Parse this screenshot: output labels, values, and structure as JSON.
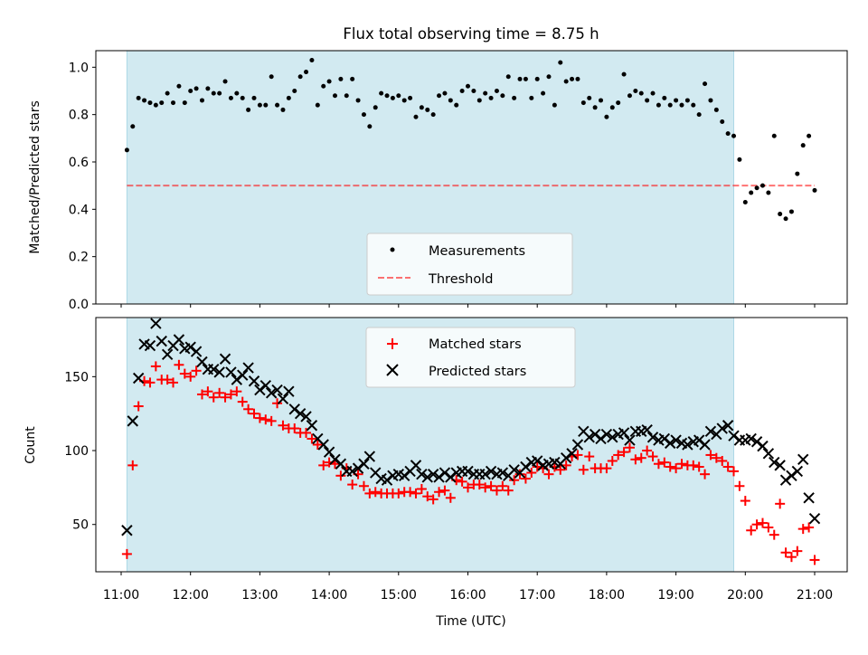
{
  "title": "Flux total observing time = 8.75 h",
  "colors": {
    "observing_band": "#add8e6",
    "measurement": "#000000",
    "threshold": "#ff0000",
    "matched": "#ff0000",
    "predicted": "#000000"
  },
  "chart_data": [
    {
      "type": "scatter",
      "panel": "top",
      "title": "Flux total observing time = 8.75 h",
      "xlabel": "",
      "ylabel": "Matched/Predicted stars",
      "xlim": [
        "10:55",
        "21:30"
      ],
      "ylim": [
        0.0,
        1.07
      ],
      "yticks": [
        0.0,
        0.2,
        0.4,
        0.6,
        0.8,
        1.0
      ],
      "ytick_labels": [
        "0.0",
        "0.2",
        "0.4",
        "0.6",
        "0.8",
        "1.0"
      ],
      "x_tick_values": [
        "11:00",
        "12:00",
        "13:00",
        "14:00",
        "15:00",
        "16:00",
        "17:00",
        "18:00",
        "19:00",
        "20:00",
        "21:00"
      ],
      "observing_window": [
        "11:05",
        "19:50"
      ],
      "legend": {
        "position": "lower center",
        "entries": [
          "Measurements",
          "Threshold"
        ]
      },
      "threshold": {
        "name": "Threshold",
        "y": 0.5,
        "x_range": [
          "11:05",
          "21:00"
        ],
        "style": "dashed"
      },
      "series": [
        {
          "name": "Measurements",
          "marker": "dot",
          "x": [
            "11:05",
            "11:10",
            "11:15",
            "11:20",
            "11:25",
            "11:30",
            "11:35",
            "11:40",
            "11:45",
            "11:50",
            "11:55",
            "12:00",
            "12:05",
            "12:10",
            "12:15",
            "12:20",
            "12:25",
            "12:30",
            "12:35",
            "12:40",
            "12:45",
            "12:50",
            "12:55",
            "13:00",
            "13:05",
            "13:10",
            "13:15",
            "13:20",
            "13:25",
            "13:30",
            "13:35",
            "13:40",
            "13:45",
            "13:50",
            "13:55",
            "14:00",
            "14:05",
            "14:10",
            "14:15",
            "14:20",
            "14:25",
            "14:30",
            "14:35",
            "14:40",
            "14:45",
            "14:50",
            "14:55",
            "15:00",
            "15:05",
            "15:10",
            "15:15",
            "15:20",
            "15:25",
            "15:30",
            "15:35",
            "15:40",
            "15:45",
            "15:50",
            "15:55",
            "16:00",
            "16:05",
            "16:10",
            "16:15",
            "16:20",
            "16:25",
            "16:30",
            "16:35",
            "16:40",
            "16:45",
            "16:50",
            "16:55",
            "17:00",
            "17:05",
            "17:10",
            "17:15",
            "17:20",
            "17:25",
            "17:30",
            "17:35",
            "17:40",
            "17:45",
            "17:50",
            "17:55",
            "18:00",
            "18:05",
            "18:10",
            "18:15",
            "18:20",
            "18:25",
            "18:30",
            "18:35",
            "18:40",
            "18:45",
            "18:50",
            "18:55",
            "19:00",
            "19:05",
            "19:10",
            "19:15",
            "19:20",
            "19:25",
            "19:30",
            "19:35",
            "19:40",
            "19:45",
            "19:50",
            "19:55",
            "20:00",
            "20:05",
            "20:10",
            "20:15",
            "20:20",
            "20:25",
            "20:30",
            "20:35",
            "20:40",
            "20:45",
            "20:50",
            "20:55",
            "21:00"
          ],
          "y": [
            0.65,
            0.75,
            0.87,
            0.86,
            0.85,
            0.84,
            0.85,
            0.89,
            0.85,
            0.92,
            0.85,
            0.9,
            0.91,
            0.86,
            0.91,
            0.89,
            0.89,
            0.94,
            0.87,
            0.89,
            0.87,
            0.82,
            0.87,
            0.84,
            0.84,
            0.96,
            0.84,
            0.82,
            0.87,
            0.9,
            0.96,
            0.98,
            1.03,
            0.84,
            0.92,
            0.94,
            0.88,
            0.95,
            0.88,
            0.95,
            0.86,
            0.8,
            0.75,
            0.83,
            0.89,
            0.88,
            0.87,
            0.88,
            0.86,
            0.87,
            0.79,
            0.83,
            0.82,
            0.8,
            0.88,
            0.89,
            0.86,
            0.84,
            0.9,
            0.92,
            0.9,
            0.86,
            0.89,
            0.87,
            0.9,
            0.88,
            0.96,
            0.87,
            0.95,
            0.95,
            0.87,
            0.95,
            0.89,
            0.96,
            0.84,
            1.02,
            0.94,
            0.95,
            0.95,
            0.85,
            0.87,
            0.83,
            0.86,
            0.79,
            0.83,
            0.85,
            0.97,
            0.88,
            0.9,
            0.89,
            0.86,
            0.89,
            0.84,
            0.87,
            0.84,
            0.86,
            0.84,
            0.86,
            0.84,
            0.8,
            0.93,
            0.86,
            0.82,
            0.77,
            0.72,
            0.71,
            0.61,
            0.43,
            0.47,
            0.49,
            0.5,
            0.47,
            0.71,
            0.38,
            0.36,
            0.39,
            0.55,
            0.67,
            0.71,
            0.48
          ]
        }
      ]
    },
    {
      "type": "scatter",
      "panel": "bottom",
      "xlabel": "Time (UTC)",
      "ylabel": "Count",
      "xlim": [
        "10:55",
        "21:30"
      ],
      "ylim": [
        18,
        190
      ],
      "yticks": [
        50,
        100,
        150
      ],
      "ytick_labels": [
        "50",
        "100",
        "150"
      ],
      "x_tick_values": [
        "11:00",
        "12:00",
        "13:00",
        "14:00",
        "15:00",
        "16:00",
        "17:00",
        "18:00",
        "19:00",
        "20:00",
        "21:00"
      ],
      "x_tick_labels": [
        "11:00",
        "12:00",
        "13:00",
        "14:00",
        "15:00",
        "16:00",
        "17:00",
        "18:00",
        "19:00",
        "20:00",
        "21:00"
      ],
      "observing_window": [
        "11:05",
        "19:50"
      ],
      "legend": {
        "position": "upper center",
        "entries": [
          "Matched stars",
          "Predicted stars"
        ]
      },
      "series": [
        {
          "name": "Matched stars",
          "marker": "plus",
          "x": [
            "11:05",
            "11:10",
            "11:15",
            "11:20",
            "11:25",
            "11:30",
            "11:35",
            "11:40",
            "11:45",
            "11:50",
            "11:55",
            "12:00",
            "12:05",
            "12:10",
            "12:15",
            "12:20",
            "12:25",
            "12:30",
            "12:35",
            "12:40",
            "12:45",
            "12:50",
            "12:55",
            "13:00",
            "13:05",
            "13:10",
            "13:15",
            "13:20",
            "13:25",
            "13:30",
            "13:35",
            "13:40",
            "13:45",
            "13:50",
            "13:55",
            "14:00",
            "14:05",
            "14:10",
            "14:15",
            "14:20",
            "14:25",
            "14:30",
            "14:35",
            "14:40",
            "14:45",
            "14:50",
            "14:55",
            "15:00",
            "15:05",
            "15:10",
            "15:15",
            "15:20",
            "15:25",
            "15:30",
            "15:35",
            "15:40",
            "15:45",
            "15:50",
            "15:55",
            "16:00",
            "16:05",
            "16:10",
            "16:15",
            "16:20",
            "16:25",
            "16:30",
            "16:35",
            "16:40",
            "16:45",
            "16:50",
            "16:55",
            "17:00",
            "17:05",
            "17:10",
            "17:15",
            "17:20",
            "17:25",
            "17:30",
            "17:35",
            "17:40",
            "17:45",
            "17:50",
            "17:55",
            "18:00",
            "18:05",
            "18:10",
            "18:15",
            "18:20",
            "18:25",
            "18:30",
            "18:35",
            "18:40",
            "18:45",
            "18:50",
            "18:55",
            "19:00",
            "19:05",
            "19:10",
            "19:15",
            "19:20",
            "19:25",
            "19:30",
            "19:35",
            "19:40",
            "19:45",
            "19:50",
            "19:55",
            "20:00",
            "20:05",
            "20:10",
            "20:15",
            "20:20",
            "20:25",
            "20:30",
            "20:35",
            "20:40",
            "20:45",
            "20:50",
            "20:55",
            "21:00"
          ],
          "y": [
            30,
            90,
            130,
            147,
            146,
            157,
            148,
            148,
            146,
            158,
            152,
            150,
            154,
            138,
            140,
            136,
            139,
            136,
            138,
            140,
            133,
            128,
            125,
            122,
            121,
            120,
            132,
            117,
            115,
            115,
            112,
            112,
            108,
            104,
            90,
            92,
            91,
            83,
            88,
            77,
            84,
            76,
            71,
            72,
            71,
            71,
            71,
            71,
            72,
            72,
            71,
            74,
            69,
            67,
            72,
            73,
            68,
            80,
            79,
            75,
            77,
            77,
            75,
            76,
            73,
            76,
            73,
            80,
            84,
            81,
            85,
            89,
            88,
            84,
            89,
            87,
            90,
            96,
            97,
            87,
            96,
            88,
            88,
            88,
            93,
            97,
            99,
            102,
            94,
            95,
            100,
            96,
            91,
            92,
            89,
            88,
            91,
            90,
            90,
            89,
            84,
            97,
            95,
            93,
            89,
            86,
            76,
            66,
            46,
            50,
            51,
            48,
            43,
            64,
            31,
            28,
            32,
            47,
            48,
            26
          ],
          "axis": "count"
        },
        {
          "name": "Predicted stars",
          "marker": "x",
          "x": [
            "11:05",
            "11:10",
            "11:15",
            "11:20",
            "11:25",
            "11:30",
            "11:35",
            "11:40",
            "11:45",
            "11:50",
            "11:55",
            "12:00",
            "12:05",
            "12:10",
            "12:15",
            "12:20",
            "12:25",
            "12:30",
            "12:35",
            "12:40",
            "12:45",
            "12:50",
            "12:55",
            "13:00",
            "13:05",
            "13:10",
            "13:15",
            "13:20",
            "13:25",
            "13:30",
            "13:35",
            "13:40",
            "13:45",
            "13:50",
            "13:55",
            "14:00",
            "14:05",
            "14:10",
            "14:15",
            "14:20",
            "14:25",
            "14:30",
            "14:35",
            "14:40",
            "14:45",
            "14:50",
            "14:55",
            "15:00",
            "15:05",
            "15:10",
            "15:15",
            "15:20",
            "15:25",
            "15:30",
            "15:35",
            "15:40",
            "15:45",
            "15:50",
            "15:55",
            "16:00",
            "16:05",
            "16:10",
            "16:15",
            "16:20",
            "16:25",
            "16:30",
            "16:35",
            "16:40",
            "16:45",
            "16:50",
            "16:55",
            "17:00",
            "17:05",
            "17:10",
            "17:15",
            "17:20",
            "17:25",
            "17:30",
            "17:35",
            "17:40",
            "17:45",
            "17:50",
            "17:55",
            "18:00",
            "18:05",
            "18:10",
            "18:15",
            "18:20",
            "18:25",
            "18:30",
            "18:35",
            "18:40",
            "18:45",
            "18:50",
            "18:55",
            "19:00",
            "19:05",
            "19:10",
            "19:15",
            "19:20",
            "19:25",
            "19:30",
            "19:35",
            "19:40",
            "19:45",
            "19:50",
            "19:55",
            "20:00",
            "20:05",
            "20:10",
            "20:15",
            "20:20",
            "20:25",
            "20:30",
            "20:35",
            "20:40",
            "20:45",
            "20:50",
            "20:55",
            "21:00"
          ],
          "y": [
            46,
            120,
            149,
            172,
            171,
            186,
            174,
            165,
            171,
            175,
            169,
            170,
            167,
            160,
            155,
            155,
            153,
            162,
            153,
            148,
            151,
            156,
            147,
            141,
            144,
            139,
            141,
            135,
            140,
            128,
            125,
            123,
            117,
            108,
            104,
            99,
            94,
            91,
            86,
            86,
            88,
            91,
            96,
            85,
            81,
            80,
            83,
            84,
            83,
            86,
            90,
            84,
            82,
            84,
            82,
            85,
            82,
            85,
            86,
            86,
            84,
            84,
            84,
            86,
            84,
            85,
            83,
            87,
            85,
            89,
            92,
            93,
            90,
            91,
            92,
            91,
            95,
            98,
            104,
            113,
            109,
            111,
            108,
            111,
            109,
            111,
            112,
            107,
            113,
            113,
            114,
            109,
            107,
            108,
            105,
            107,
            105,
            104,
            106,
            107,
            104,
            113,
            111,
            115,
            117,
            110,
            107,
            107,
            108,
            106,
            103,
            98,
            92,
            90,
            80,
            83,
            86,
            94,
            68,
            54
          ],
          "axis": "count"
        }
      ]
    }
  ]
}
